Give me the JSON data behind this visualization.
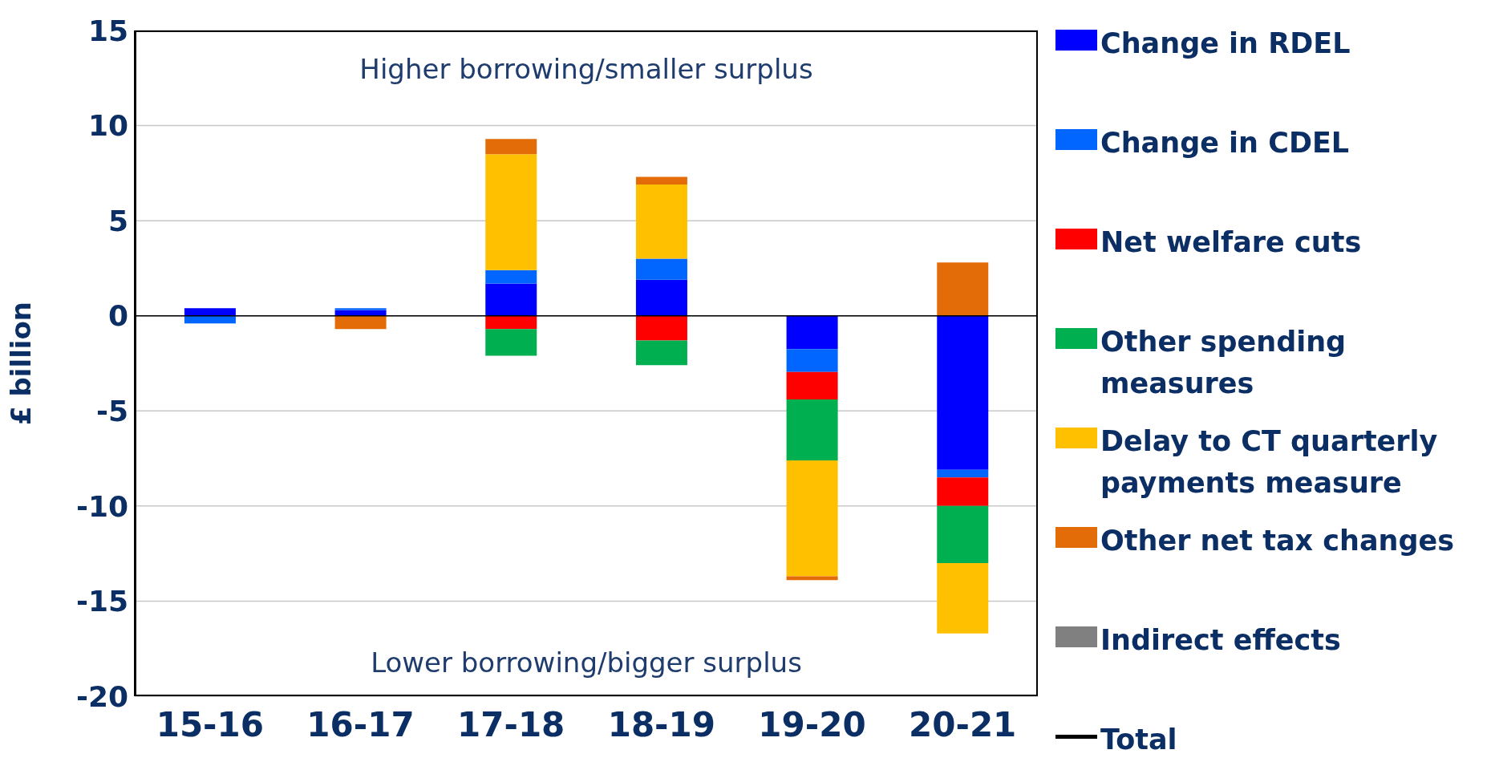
{
  "chart_data": {
    "type": "bar",
    "stacked": true,
    "ylabel": "£ billion",
    "categories": [
      "15-16",
      "16-17",
      "17-18",
      "18-19",
      "19-20",
      "20-21"
    ],
    "series": [
      {
        "name": "Change in RDEL",
        "color": "#0000ff",
        "values": [
          0.4,
          0.3,
          1.7,
          1.9,
          -1.75,
          -8.1
        ]
      },
      {
        "name": "Change in CDEL",
        "color": "#0066ff",
        "values": [
          -0.4,
          0.1,
          0.7,
          1.1,
          -1.2,
          -0.4
        ]
      },
      {
        "name": "Net welfare cuts",
        "color": "#ff0000",
        "values": [
          null,
          null,
          -0.7,
          -1.3,
          -1.45,
          -1.5
        ]
      },
      {
        "name": "Other spending measures",
        "color": "#00b050",
        "values": [
          null,
          null,
          -1.4,
          -1.3,
          -3.2,
          -3
        ]
      },
      {
        "name": "Delay to CT quarterly payments measure",
        "color": "#ffc000",
        "values": [
          null,
          null,
          6.1,
          3.9,
          -6.1,
          -3.7
        ]
      },
      {
        "name": "Other net tax changes",
        "color": "#e36c09",
        "values": [
          null,
          -0.7,
          0.8,
          0.4,
          -0.2,
          2.8
        ]
      },
      {
        "name": "Indirect effects",
        "color": "#808080",
        "values": [
          null,
          null,
          null,
          null,
          null,
          null
        ]
      },
      {
        "name": "Total",
        "type": "line",
        "color": "#000000",
        "values": [
          null,
          null,
          null,
          null,
          null,
          null
        ]
      }
    ],
    "ylim": [
      -20,
      15
    ],
    "yticks": [
      -20,
      -15,
      -10,
      -5,
      0,
      5,
      10,
      15
    ],
    "grid": "y",
    "legend": "right",
    "annotations": [
      "Higher borrowing/smaller surplus",
      "Lower borrowing/bigger surplus"
    ]
  }
}
